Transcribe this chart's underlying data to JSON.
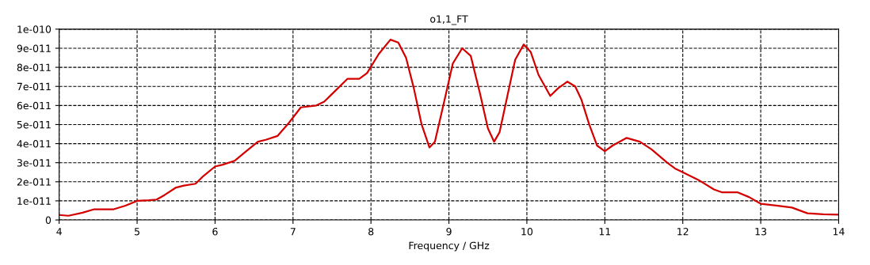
{
  "chart_data": {
    "type": "line",
    "title": "o1,1_FT",
    "xlabel": "Frequency / GHz",
    "x": [
      4.0,
      4.12,
      4.3,
      4.45,
      4.6,
      4.7,
      4.85,
      5.0,
      5.15,
      5.25,
      5.35,
      5.5,
      5.6,
      5.75,
      5.85,
      6.0,
      6.1,
      6.25,
      6.4,
      6.55,
      6.65,
      6.8,
      6.95,
      7.1,
      7.3,
      7.4,
      7.5,
      7.7,
      7.85,
      7.95,
      8.1,
      8.25,
      8.35,
      8.45,
      8.55,
      8.65,
      8.75,
      8.82,
      8.95,
      9.05,
      9.17,
      9.28,
      9.4,
      9.5,
      9.58,
      9.65,
      9.75,
      9.85,
      9.96,
      10.05,
      10.15,
      10.3,
      10.4,
      10.52,
      10.62,
      10.7,
      10.8,
      10.9,
      11.0,
      11.1,
      11.28,
      11.45,
      11.6,
      11.8,
      11.9,
      12.0,
      12.2,
      12.4,
      12.5,
      12.7,
      12.85,
      13.0,
      13.2,
      13.4,
      13.6,
      13.8,
      14.0
    ],
    "series": [
      {
        "color": "#d40000",
        "values": [
          2.6e-12,
          2.2e-12,
          3.8e-12,
          5.6e-12,
          5.6e-12,
          5.6e-12,
          7.5e-12,
          1e-11,
          1.03e-11,
          1.07e-11,
          1.3e-11,
          1.7e-11,
          1.8e-11,
          1.9e-11,
          2.3e-11,
          2.8e-11,
          2.9e-11,
          3.1e-11,
          3.6e-11,
          4.1e-11,
          4.2e-11,
          4.4e-11,
          5.1e-11,
          5.9e-11,
          6e-11,
          6.2e-11,
          6.6e-11,
          7.4e-11,
          7.4e-11,
          7.7e-11,
          8.7e-11,
          9.45e-11,
          9.3e-11,
          8.5e-11,
          6.9e-11,
          5e-11,
          3.8e-11,
          4.1e-11,
          6.4e-11,
          8.2e-11,
          9e-11,
          8.6e-11,
          6.6e-11,
          4.8e-11,
          4.1e-11,
          4.6e-11,
          6.5e-11,
          8.4e-11,
          9.2e-11,
          8.8e-11,
          7.6e-11,
          6.5e-11,
          6.9e-11,
          7.25e-11,
          7e-11,
          6.3e-11,
          5e-11,
          3.9e-11,
          3.6e-11,
          3.9e-11,
          4.3e-11,
          4.1e-11,
          3.7e-11,
          3e-11,
          2.7e-11,
          2.5e-11,
          2.1e-11,
          1.6e-11,
          1.45e-11,
          1.45e-11,
          1.2e-11,
          8.5e-12,
          7.5e-12,
          6.5e-12,
          3.5e-12,
          3e-12,
          2.8e-12
        ]
      }
    ],
    "xlim": [
      4,
      14
    ],
    "xticks": [
      4,
      5,
      6,
      7,
      8,
      9,
      10,
      11,
      12,
      13,
      14
    ],
    "ylim": [
      0,
      1e-10
    ],
    "yticks": [
      0,
      {
        "value": 1e-11,
        "label": "1e-011"
      },
      {
        "value": 2e-11,
        "label": "2e-011"
      },
      {
        "value": 3e-11,
        "label": "3e-011"
      },
      {
        "value": 4e-11,
        "label": "4e-011"
      },
      {
        "value": 5e-11,
        "label": "5e-011"
      },
      {
        "value": 6e-11,
        "label": "6e-011"
      },
      {
        "value": 7e-11,
        "label": "7e-011"
      },
      {
        "value": 8e-11,
        "label": "8e-011"
      },
      {
        "value": 9e-11,
        "label": "9e-011"
      },
      {
        "value": 1e-10,
        "label": "1e-010"
      }
    ],
    "grid": true,
    "line_style": "solid"
  }
}
